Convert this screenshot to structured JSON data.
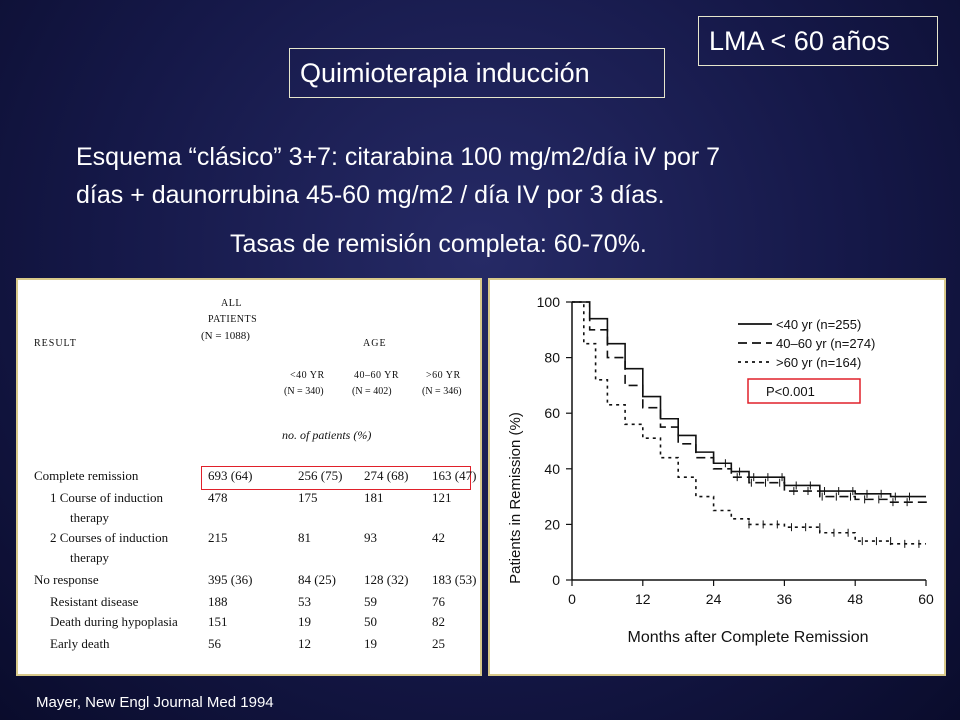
{
  "header": {
    "lma_label": "LMA < 60 años",
    "quimio_label": "Quimioterapia inducción"
  },
  "body": {
    "esquema_line1": "Esquema “clásico” 3+7: citarabina 100 mg/m2/día iV por 7",
    "esquema_line2": "días + daunorrubina 45-60 mg/m2 / día IV por 3 días.",
    "tasas": "Tasas de remisión completa: 60-70%."
  },
  "table": {
    "result_header": "Result",
    "all_header_1": "All",
    "all_header_2": "Patients",
    "all_header_3": "(N = 1088)",
    "age_header": "Age",
    "age_groups": [
      {
        "label": "<40 yr",
        "n": "(N = 340)"
      },
      {
        "label": "40–60 yr",
        "n": "(N = 402)"
      },
      {
        "label": ">60 yr",
        "n": "(N = 346)"
      }
    ],
    "units_note": "no. of patients (%)",
    "rows": [
      {
        "label": "Complete remission",
        "all": "693 (64)",
        "g1": "256 (75)",
        "g2": "274 (68)",
        "g3": "163 (47)"
      },
      {
        "label": "1 Course of induction",
        "all": "478",
        "g1": "175",
        "g2": "181",
        "g3": "121"
      },
      {
        "label": "therapy",
        "all": "",
        "g1": "",
        "g2": "",
        "g3": ""
      },
      {
        "label": "2 Courses of induction",
        "all": "215",
        "g1": "81",
        "g2": "93",
        "g3": "42"
      },
      {
        "label": "therapy",
        "all": "",
        "g1": "",
        "g2": "",
        "g3": ""
      },
      {
        "label": "No response",
        "all": "395 (36)",
        "g1": "84 (25)",
        "g2": "128 (32)",
        "g3": "183 (53)"
      },
      {
        "label": "Resistant disease",
        "all": "188",
        "g1": "53",
        "g2": "59",
        "g3": "76"
      },
      {
        "label": "Death during hypoplasia",
        "all": "151",
        "g1": "19",
        "g2": "50",
        "g3": "82"
      },
      {
        "label": "Early death",
        "all": "56",
        "g1": "12",
        "g2": "19",
        "g3": "25"
      }
    ]
  },
  "chart_data": {
    "type": "line",
    "title": "",
    "xlabel": "Months after Complete Remission",
    "ylabel": "Patients in Remission (%)",
    "xlim": [
      0,
      60
    ],
    "ylim": [
      0,
      100
    ],
    "xticks": [
      0,
      12,
      24,
      36,
      48,
      60
    ],
    "yticks": [
      0,
      20,
      40,
      60,
      80,
      100
    ],
    "legend_position": "top-right",
    "annotation": "P<0.001",
    "series": [
      {
        "name": "<40 yr (n=255)",
        "style": "solid",
        "x": [
          0,
          3,
          6,
          9,
          12,
          15,
          18,
          21,
          24,
          27,
          30,
          36,
          42,
          48,
          54,
          60
        ],
        "y": [
          100,
          94,
          85,
          76,
          66,
          58,
          52,
          46,
          42,
          39,
          37,
          34,
          32,
          31,
          30,
          30
        ]
      },
      {
        "name": "40–60 yr (n=274)",
        "style": "dashed",
        "x": [
          0,
          3,
          6,
          9,
          12,
          15,
          18,
          21,
          24,
          27,
          30,
          36,
          42,
          48,
          54,
          60
        ],
        "y": [
          100,
          90,
          80,
          70,
          62,
          55,
          49,
          44,
          40,
          37,
          35,
          32,
          30,
          29,
          28,
          26
        ]
      },
      {
        "name": ">60 yr (n=164)",
        "style": "dotted",
        "x": [
          0,
          2,
          4,
          6,
          9,
          12,
          15,
          18,
          21,
          24,
          27,
          30,
          36,
          42,
          48,
          54,
          60
        ],
        "y": [
          100,
          85,
          72,
          63,
          56,
          51,
          44,
          37,
          30,
          25,
          22,
          20,
          19,
          17,
          14,
          13,
          13
        ]
      }
    ]
  },
  "citation": "Mayer, New Engl Journal Med 1994",
  "colors": {
    "highlight": "#e0202a",
    "panel_border": "#d8c98a"
  }
}
